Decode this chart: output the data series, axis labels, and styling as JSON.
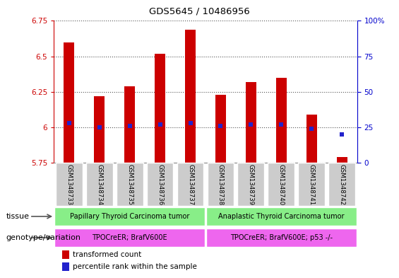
{
  "title": "GDS5645 / 10486956",
  "samples": [
    "GSM1348733",
    "GSM1348734",
    "GSM1348735",
    "GSM1348736",
    "GSM1348737",
    "GSM1348738",
    "GSM1348739",
    "GSM1348740",
    "GSM1348741",
    "GSM1348742"
  ],
  "transformed_count": [
    6.6,
    6.22,
    6.29,
    6.52,
    6.69,
    6.23,
    6.32,
    6.35,
    6.09,
    5.79
  ],
  "percentile_rank": [
    28,
    25,
    26,
    27,
    28,
    26,
    27,
    27,
    24,
    20
  ],
  "ylim": [
    5.75,
    6.75
  ],
  "yticks": [
    5.75,
    6.0,
    6.25,
    6.5,
    6.75
  ],
  "right_yticks": [
    0,
    25,
    50,
    75,
    100
  ],
  "right_ylim": [
    0,
    100
  ],
  "bar_color": "#cc0000",
  "dot_color": "#2222cc",
  "bar_width": 0.35,
  "tissue_color1": "#88ee88",
  "tissue_color2": "#88ee88",
  "genotype_color1": "#ee66ee",
  "genotype_color2": "#ee66ee",
  "tissue_label1": "Papillary Thyroid Carcinoma tumor",
  "tissue_label2": "Anaplastic Thyroid Carcinoma tumor",
  "genotype_label1": "TPOCreER; BrafV600E",
  "genotype_label2": "TPOCreER; BrafV600E; p53 -/-",
  "left_axis_color": "#cc0000",
  "right_axis_color": "#0000cc",
  "grid_color": "#555555",
  "legend_items": [
    {
      "label": "transformed count",
      "color": "#cc0000"
    },
    {
      "label": "percentile rank within the sample",
      "color": "#2222cc"
    }
  ]
}
